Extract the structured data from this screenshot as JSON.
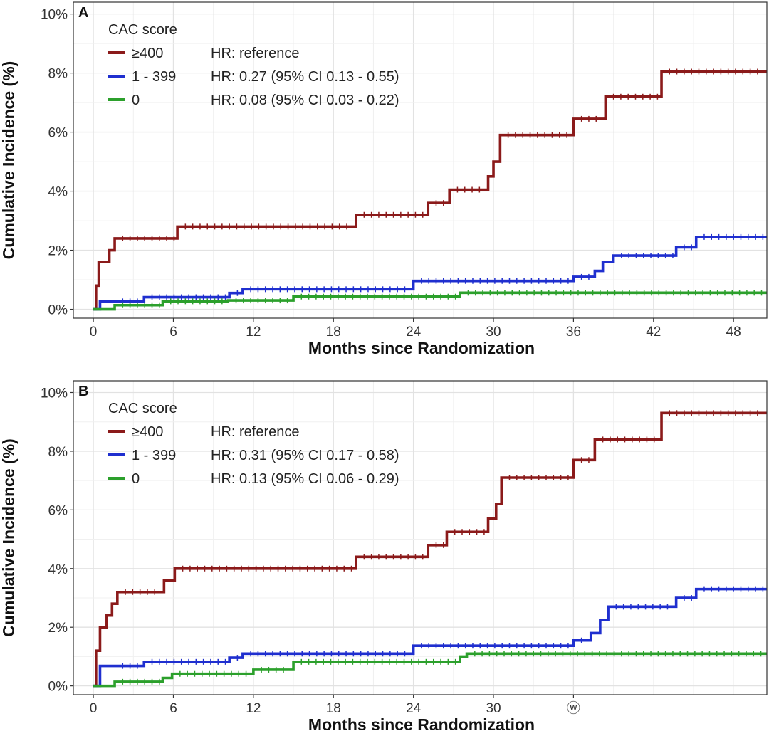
{
  "chart_data": [
    {
      "type": "line",
      "subtype": "step",
      "panel_label": "A",
      "title": "",
      "xlabel": "Months since Randomization",
      "ylabel": "Cumulative Incidence (%)",
      "xlim": [
        -1.5,
        50.5
      ],
      "ylim": [
        -0.3,
        10.4
      ],
      "xticks": [
        0,
        6,
        12,
        18,
        24,
        30,
        36,
        42,
        48
      ],
      "xtick_labels": [
        "0",
        "6",
        "12",
        "18",
        "24",
        "30",
        "36",
        "42",
        "48"
      ],
      "yticks": [
        0,
        2,
        4,
        6,
        8,
        10
      ],
      "ytick_labels": [
        "0%",
        "2%",
        "4%",
        "6%",
        "8%",
        "10%"
      ],
      "grid": true,
      "legend": {
        "title": "CAC score",
        "placement": "top-left",
        "entries": [
          {
            "label": "≥400",
            "hr": "HR: reference",
            "color": "#8b1a1a"
          },
          {
            "label": "1 - 399",
            "hr": "HR: 0.27 (95% CI 0.13 - 0.55)",
            "color": "#1f2fcf"
          },
          {
            "label": "0",
            "hr": "HR: 0.08 (95% CI 0.03 - 0.22)",
            "color": "#2ca02c"
          }
        ]
      },
      "series": [
        {
          "name": "≥400",
          "color": "#8b1a1a",
          "x": [
            0,
            0.2,
            0.4,
            1.2,
            1.6,
            6.3,
            19.7,
            25.1,
            26.7,
            29.6,
            30.0,
            30.5,
            36.0,
            38.4,
            42.6,
            50.5
          ],
          "y": [
            0,
            0.8,
            1.6,
            2.0,
            2.4,
            2.8,
            3.2,
            3.6,
            4.05,
            4.5,
            5.0,
            5.9,
            6.45,
            7.2,
            8.05,
            8.05
          ]
        },
        {
          "name": "1 - 399",
          "color": "#1f2fcf",
          "x": [
            0,
            0.5,
            3.8,
            10.2,
            11.2,
            24.0,
            36.0,
            37.6,
            38.2,
            39.0,
            43.7,
            45.2,
            50.5
          ],
          "y": [
            0,
            0.27,
            0.41,
            0.55,
            0.68,
            0.96,
            1.1,
            1.3,
            1.6,
            1.82,
            2.1,
            2.45,
            2.45
          ]
        },
        {
          "name": "0",
          "color": "#2ca02c",
          "x": [
            0,
            1.6,
            5.2,
            10.1,
            15.0,
            27.5,
            50.5
          ],
          "y": [
            0,
            0.14,
            0.27,
            0.3,
            0.43,
            0.56,
            0.56
          ]
        }
      ]
    },
    {
      "type": "line",
      "subtype": "step",
      "panel_label": "B",
      "title": "",
      "xlabel": "Months since Randomization",
      "ylabel": "Cumulative Incidence (%)",
      "xlim": [
        -1.5,
        50.5
      ],
      "ylim": [
        -0.3,
        10.4
      ],
      "xticks": [
        0,
        6,
        12,
        18,
        24,
        30,
        36
      ],
      "xtick_labels": [
        "0",
        "6",
        "12",
        "18",
        "24",
        "30",
        "ⓦ"
      ],
      "yticks": [
        0,
        2,
        4,
        6,
        8,
        10
      ],
      "ytick_labels": [
        "0%",
        "2%",
        "4%",
        "6%",
        "8%",
        "10%"
      ],
      "grid": true,
      "legend": {
        "title": "CAC score",
        "placement": "top-left",
        "entries": [
          {
            "label": "≥400",
            "hr": "HR: reference",
            "color": "#8b1a1a"
          },
          {
            "label": "1 - 399",
            "hr": "HR: 0.31 (95% CI 0.17 - 0.58)",
            "color": "#1f2fcf"
          },
          {
            "label": "0",
            "hr": "HR: 0.13 (95% CI 0.06 - 0.29)",
            "color": "#2ca02c"
          }
        ]
      },
      "series": [
        {
          "name": "≥400",
          "color": "#8b1a1a",
          "x": [
            0,
            0.2,
            0.5,
            1.0,
            1.4,
            1.8,
            5.3,
            6.1,
            19.7,
            25.1,
            26.5,
            29.6,
            30.2,
            30.6,
            36.0,
            37.6,
            42.6,
            50.5
          ],
          "y": [
            0,
            1.2,
            2.0,
            2.4,
            2.8,
            3.2,
            3.6,
            4.0,
            4.4,
            4.8,
            5.25,
            5.7,
            6.2,
            7.1,
            7.7,
            8.4,
            9.3,
            9.3
          ]
        },
        {
          "name": "1 - 399",
          "color": "#1f2fcf",
          "x": [
            0,
            0.5,
            3.8,
            10.2,
            11.2,
            24.0,
            36.0,
            37.3,
            38.0,
            38.6,
            43.7,
            45.2,
            50.5
          ],
          "y": [
            0,
            0.68,
            0.82,
            0.96,
            1.1,
            1.37,
            1.55,
            1.8,
            2.25,
            2.7,
            3.0,
            3.3,
            3.3
          ]
        },
        {
          "name": "0",
          "color": "#2ca02c",
          "x": [
            0,
            1.6,
            5.2,
            5.9,
            12.0,
            15.0,
            27.5,
            28.0,
            50.5
          ],
          "y": [
            0,
            0.14,
            0.27,
            0.41,
            0.55,
            0.82,
            1.0,
            1.1,
            1.1
          ]
        }
      ]
    }
  ]
}
